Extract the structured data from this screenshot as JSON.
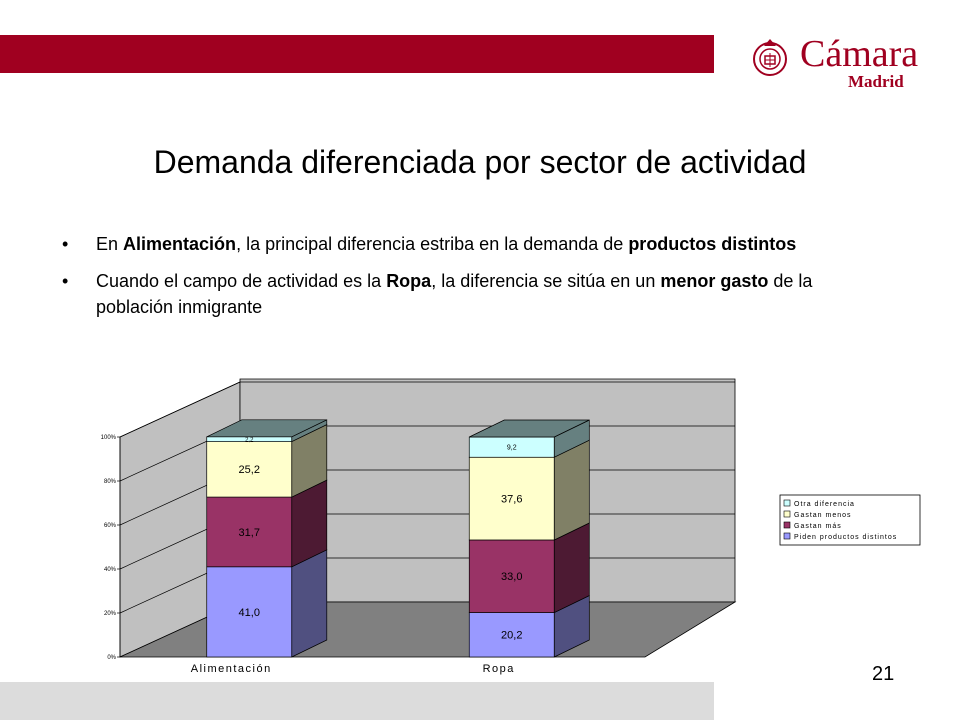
{
  "colors": {
    "top_bar": "#a00020",
    "logo": "#a00020",
    "bottom_bar": "#dcdcdc"
  },
  "logo": {
    "seal_icon": "chamber-seal-icon",
    "word": "Cámara",
    "sub": "Madrid"
  },
  "title": "Demanda diferenciada por sector de actividad",
  "bullets": [
    {
      "parts": [
        {
          "t": "En ",
          "b": false
        },
        {
          "t": "Alimentación",
          "b": true
        },
        {
          "t": ", la principal diferencia estriba en la demanda de ",
          "b": false
        },
        {
          "t": "productos distintos",
          "b": true
        }
      ]
    },
    {
      "parts": [
        {
          "t": "Cuando el campo de actividad es la ",
          "b": false
        },
        {
          "t": "Ropa",
          "b": true
        },
        {
          "t": ", la diferencia se sitúa en un ",
          "b": false
        },
        {
          "t": "menor gasto",
          "b": true
        },
        {
          "t": " de la población inmigrante",
          "b": false
        }
      ]
    }
  ],
  "bullet_symbol": "•",
  "page_number": "21",
  "chart_data": {
    "type": "bar",
    "stacked": true,
    "three_d": true,
    "categories": [
      "Alimentación",
      "Ropa"
    ],
    "y_ticks": [
      "0%",
      "20%",
      "40%",
      "60%",
      "80%",
      "100%"
    ],
    "ylim": [
      0,
      100
    ],
    "grid": true,
    "legend_position": "right",
    "series": [
      {
        "name": "Piden productos distintos",
        "values": [
          41.0,
          20.2
        ],
        "labels": [
          "41,0",
          "20,2"
        ],
        "color": "#9999ff",
        "side": "#505080"
      },
      {
        "name": "Gastan más",
        "values": [
          31.7,
          33.0
        ],
        "labels": [
          "31,7",
          "33,0"
        ],
        "color": "#993366",
        "side": "#4d1a33"
      },
      {
        "name": "Gastan menos",
        "values": [
          25.2,
          37.6
        ],
        "labels": [
          "25,2",
          "37,6"
        ],
        "color": "#ffffcc",
        "side": "#808066"
      },
      {
        "name": "Otra diferencia",
        "values": [
          2.2,
          9.2
        ],
        "labels": [
          "2,2",
          "9,2"
        ],
        "color": "#ccffff",
        "side": "#668080"
      }
    ]
  }
}
